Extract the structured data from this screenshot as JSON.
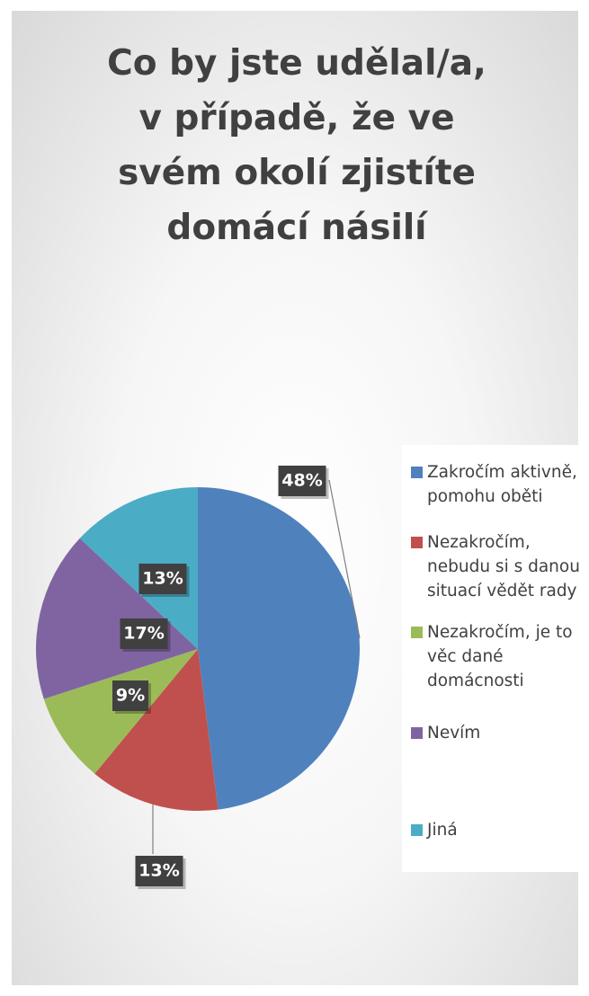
{
  "chart_data": {
    "type": "pie",
    "title": "Co by jste udělal/a, v případě, že ve svém okolí zjistíte domácí násilí",
    "categories": [
      "Zakročím aktivně, pomohu oběti",
      "Nezakročím, nebudu si s danou situací vědět rady",
      "Nezakročím, je to věc dané domácnosti",
      "Nevím",
      "Jiná"
    ],
    "values": [
      48,
      13,
      9,
      17,
      13
    ],
    "value_labels": [
      "48%",
      "13%",
      "9%",
      "17%",
      "13%"
    ],
    "colors": [
      "#4f81bd",
      "#c0504d",
      "#9bbb59",
      "#8064a2",
      "#4bacc6"
    ],
    "legend": "right"
  }
}
